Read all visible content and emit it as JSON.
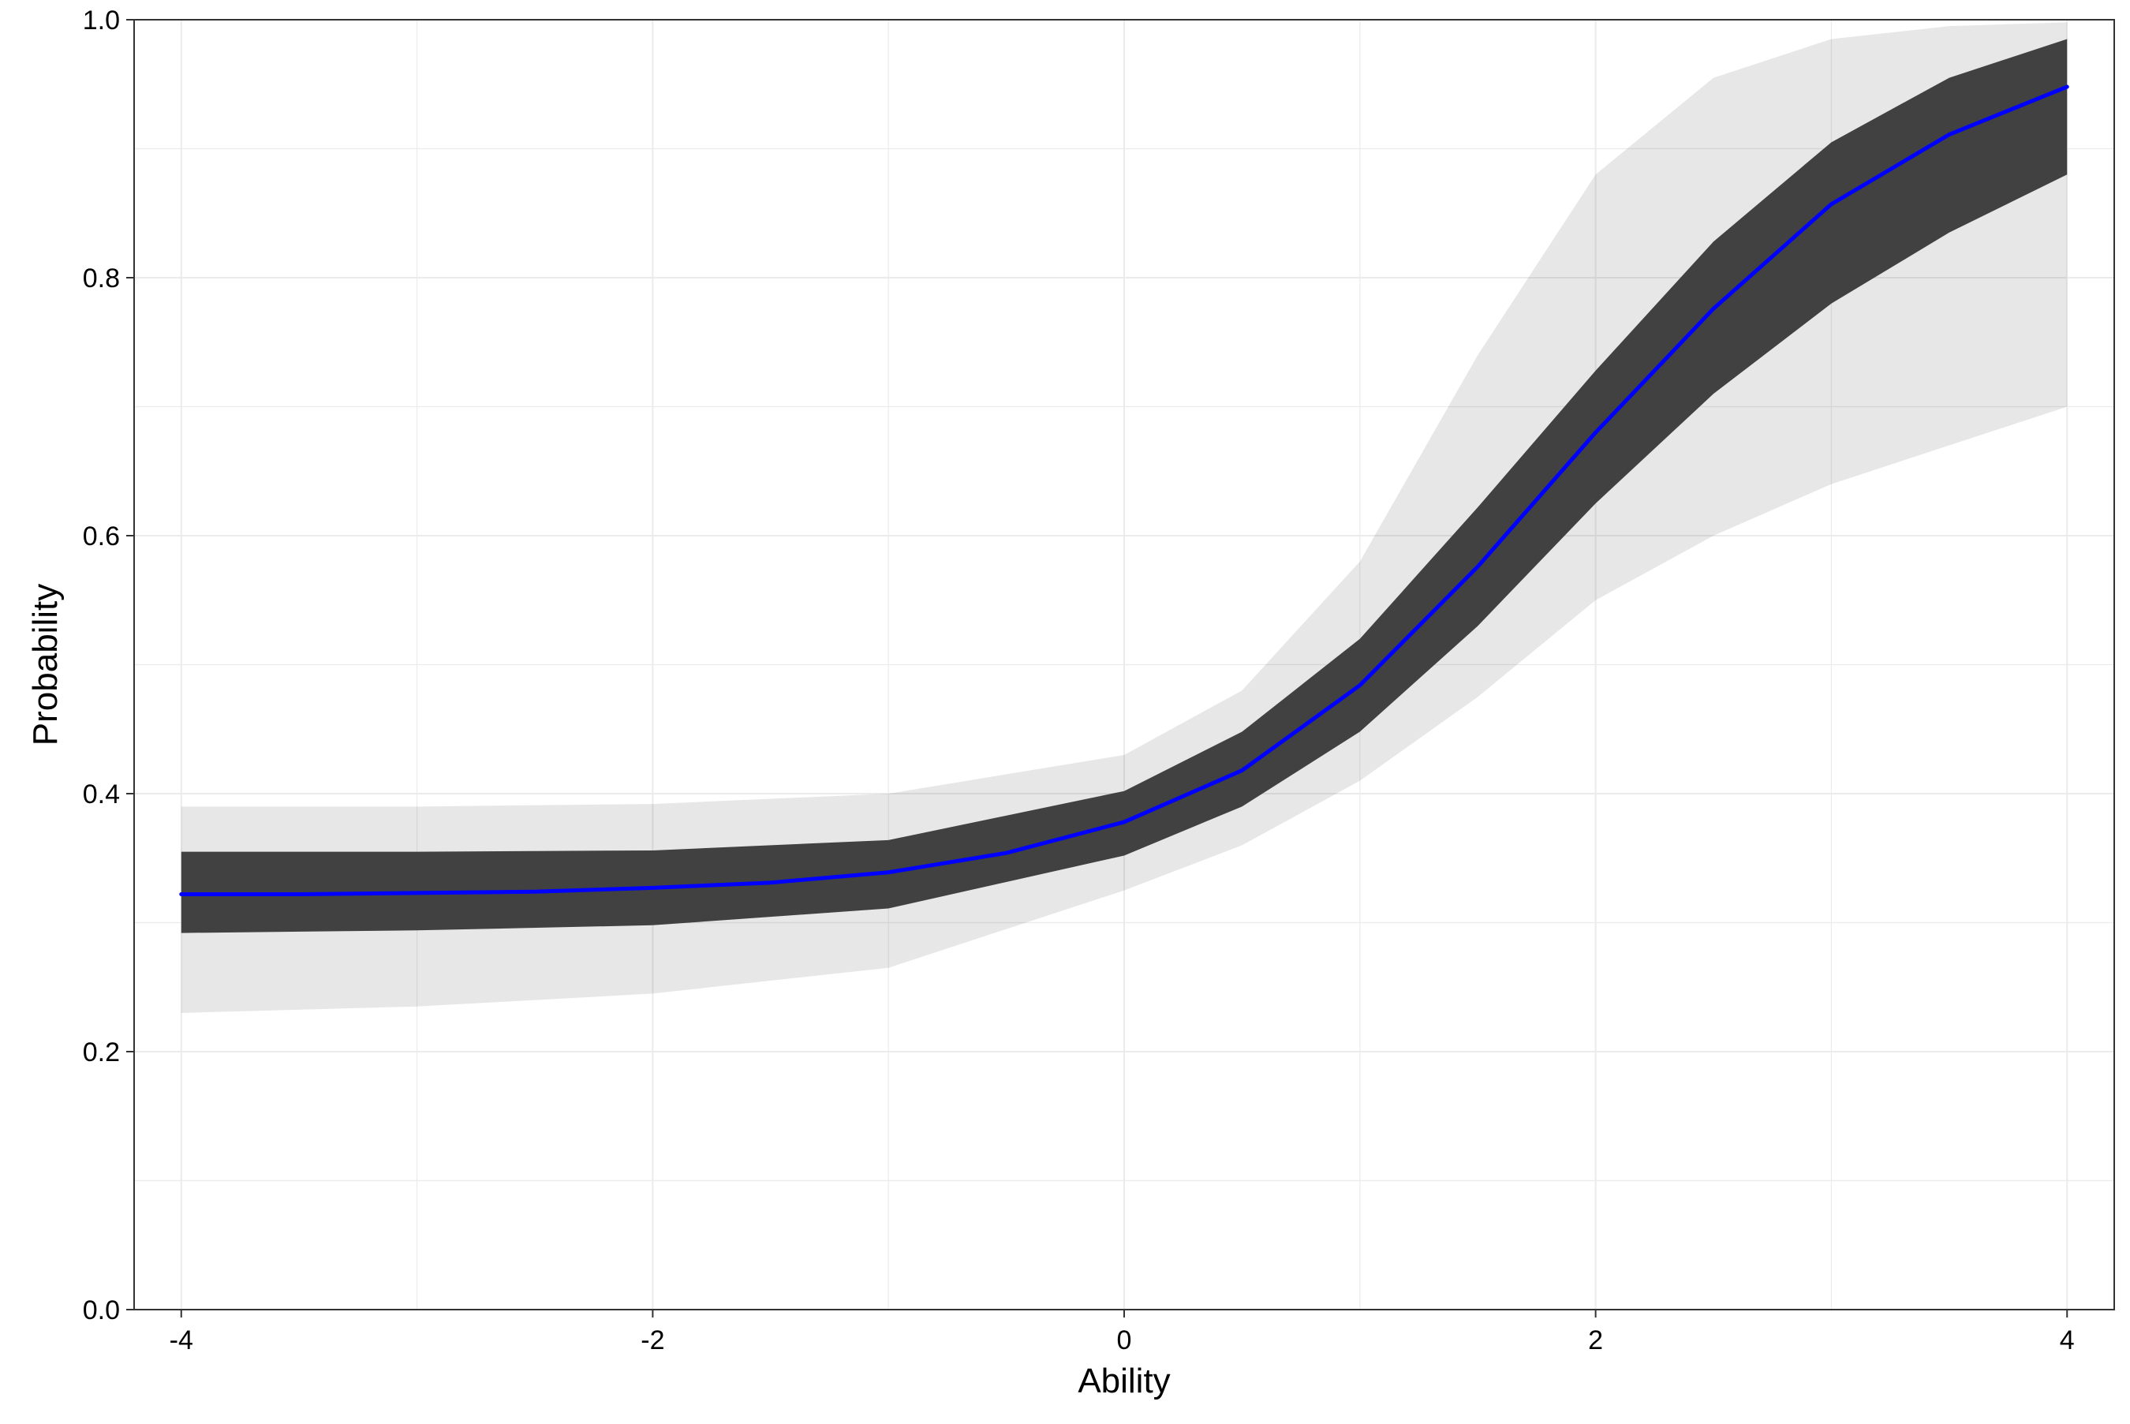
{
  "chart_data": {
    "type": "line",
    "title": "",
    "xlabel": "Ability",
    "ylabel": "Probability",
    "xlim": [
      -4.2,
      4.2
    ],
    "ylim": [
      0.0,
      1.0
    ],
    "x_ticks": [
      -4,
      -2,
      0,
      2,
      4
    ],
    "x_tick_labels": [
      "-4",
      "-2",
      "0",
      "2",
      "4"
    ],
    "y_ticks": [
      0.0,
      0.2,
      0.4,
      0.6,
      0.8,
      1.0
    ],
    "y_tick_labels": [
      "0.0",
      "0.2",
      "0.4",
      "0.6",
      "0.8",
      "1.0"
    ],
    "grid": true,
    "legend": "none",
    "colors": {
      "mean_curve": "#0000ff",
      "posterior_draws": "#3a3a3a",
      "grid": "#ebebeb",
      "panel_border": "#333333"
    },
    "mean_curve": {
      "x": [
        -4.0,
        -3.5,
        -3.0,
        -2.5,
        -2.0,
        -1.5,
        -1.0,
        -0.5,
        0.0,
        0.5,
        1.0,
        1.5,
        2.0,
        2.5,
        3.0,
        3.5,
        4.0
      ],
      "y": [
        0.322,
        0.322,
        0.323,
        0.324,
        0.327,
        0.331,
        0.339,
        0.354,
        0.378,
        0.418,
        0.484,
        0.576,
        0.68,
        0.776,
        0.857,
        0.911,
        0.948
      ]
    },
    "draw_band_core": {
      "x": [
        -4.0,
        -3.0,
        -2.0,
        -1.0,
        0.0,
        0.5,
        1.0,
        1.5,
        2.0,
        2.5,
        3.0,
        3.5,
        4.0
      ],
      "lower": [
        0.292,
        0.294,
        0.298,
        0.311,
        0.352,
        0.39,
        0.448,
        0.53,
        0.625,
        0.71,
        0.78,
        0.835,
        0.88
      ],
      "upper": [
        0.355,
        0.355,
        0.356,
        0.364,
        0.402,
        0.448,
        0.52,
        0.622,
        0.728,
        0.828,
        0.905,
        0.955,
        0.985
      ]
    },
    "draw_band_outer": {
      "x": [
        -4.0,
        -3.0,
        -2.0,
        -1.0,
        0.0,
        0.5,
        1.0,
        1.5,
        2.0,
        2.5,
        3.0,
        3.5,
        4.0
      ],
      "lower": [
        0.23,
        0.235,
        0.245,
        0.265,
        0.325,
        0.36,
        0.41,
        0.475,
        0.55,
        0.6,
        0.64,
        0.67,
        0.7
      ],
      "upper": [
        0.39,
        0.39,
        0.392,
        0.4,
        0.43,
        0.48,
        0.58,
        0.74,
        0.88,
        0.955,
        0.985,
        0.995,
        0.998
      ]
    }
  }
}
